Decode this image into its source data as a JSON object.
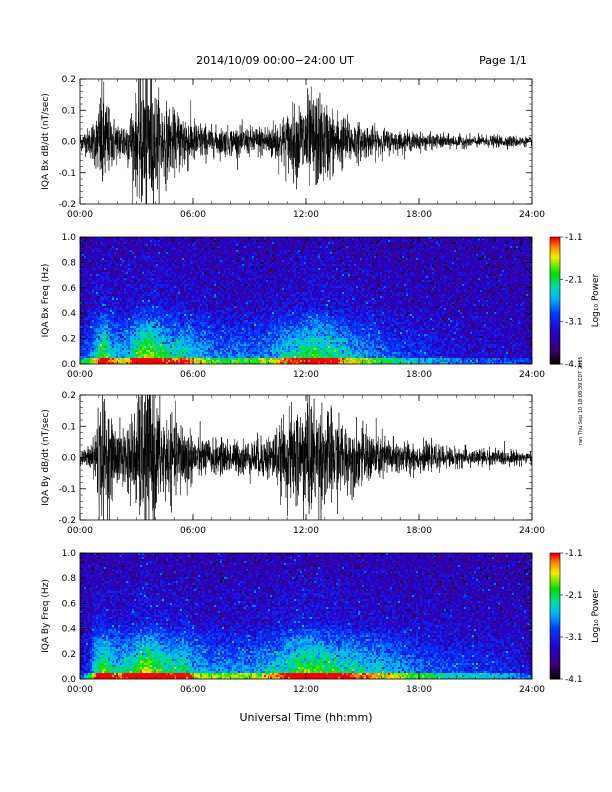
{
  "header": {
    "title": "2014/10/09  00:00−24:00 UT",
    "page": "Page 1/1"
  },
  "side_note": "ran Thu Sep 10 18:08:39 CDT 2015",
  "chart_data": [
    {
      "type": "line",
      "ylabel": "IQA Bx dB/dt (nT/sec)",
      "xlim": [
        0,
        24
      ],
      "ylim": [
        -0.2,
        0.2
      ],
      "xticks": [
        "00:00",
        "06:00",
        "12:00",
        "18:00",
        "24:00"
      ],
      "yticks": [
        "-0.2",
        "-0.1",
        "0.0",
        "0.1",
        "0.2"
      ],
      "envelope": {
        "hours": [
          0,
          0.5,
          0.9,
          1.2,
          1.6,
          2,
          2.5,
          3,
          3.4,
          3.7,
          4,
          4.5,
          5,
          5.5,
          6,
          7,
          8,
          9,
          10,
          10.5,
          11,
          11.5,
          12,
          12.5,
          13,
          13.5,
          14,
          15,
          16,
          17,
          18,
          19,
          20,
          21,
          22,
          23,
          24
        ],
        "amplitude": [
          0.03,
          0.05,
          0.1,
          0.22,
          0.1,
          0.07,
          0.08,
          0.16,
          0.28,
          0.3,
          0.18,
          0.14,
          0.1,
          0.12,
          0.08,
          0.05,
          0.05,
          0.05,
          0.06,
          0.08,
          0.1,
          0.13,
          0.16,
          0.17,
          0.14,
          0.11,
          0.09,
          0.06,
          0.045,
          0.035,
          0.03,
          0.025,
          0.022,
          0.02,
          0.02,
          0.02,
          0.015
        ]
      }
    },
    {
      "type": "heatmap",
      "ylabel": "IQA Bx Freq (Hz)",
      "xlim": [
        0,
        24
      ],
      "ylim": [
        0,
        1.0
      ],
      "xticks": [
        "00:00",
        "06:00",
        "12:00",
        "18:00",
        "24:00"
      ],
      "yticks": [
        "0.0",
        "0.2",
        "0.4",
        "0.6",
        "0.8",
        "1.0"
      ],
      "colorbar": {
        "label": "Log₁₀ Power",
        "ticks": [
          "-1.1",
          "-2.1",
          "-3.1",
          "-4.1"
        ],
        "range": [
          -4.1,
          -1.1
        ]
      }
    },
    {
      "type": "line",
      "ylabel": "IQA By dB/dt (nT/sec)",
      "xlim": [
        0,
        24
      ],
      "ylim": [
        -0.2,
        0.2
      ],
      "xticks": [
        "00:00",
        "06:00",
        "12:00",
        "18:00",
        "24:00"
      ],
      "yticks": [
        "-0.2",
        "-0.1",
        "0.0",
        "0.1",
        "0.2"
      ],
      "envelope": {
        "hours": [
          0,
          0.5,
          0.9,
          1.2,
          1.6,
          2,
          2.5,
          3,
          3.4,
          3.7,
          4,
          4.5,
          5,
          5.5,
          6,
          7,
          8,
          9,
          10,
          10.5,
          11,
          11.5,
          12,
          12.5,
          13,
          13.5,
          14,
          15,
          16,
          17,
          18,
          19,
          20,
          21,
          22,
          23,
          24
        ],
        "amplitude": [
          0.02,
          0.04,
          0.15,
          0.24,
          0.14,
          0.1,
          0.12,
          0.18,
          0.3,
          0.3,
          0.2,
          0.16,
          0.12,
          0.14,
          0.08,
          0.06,
          0.06,
          0.06,
          0.08,
          0.1,
          0.14,
          0.18,
          0.22,
          0.2,
          0.18,
          0.15,
          0.12,
          0.1,
          0.08,
          0.06,
          0.05,
          0.04,
          0.035,
          0.03,
          0.03,
          0.025,
          0.02
        ]
      }
    },
    {
      "type": "heatmap",
      "ylabel": "IQA By Freq (Hz)",
      "xlim": [
        0,
        24
      ],
      "ylim": [
        0,
        1.0
      ],
      "xticks": [
        "00:00",
        "06:00",
        "12:00",
        "18:00",
        "24:00"
      ],
      "yticks": [
        "0.0",
        "0.2",
        "0.4",
        "0.6",
        "0.8",
        "1.0"
      ],
      "colorbar": {
        "label": "Log₁₀ Power",
        "ticks": [
          "-1.1",
          "-2.1",
          "-3.1",
          "-4.1"
        ],
        "range": [
          -4.1,
          -1.1
        ]
      }
    }
  ],
  "xlabel": "Universal Time (hh:mm)"
}
